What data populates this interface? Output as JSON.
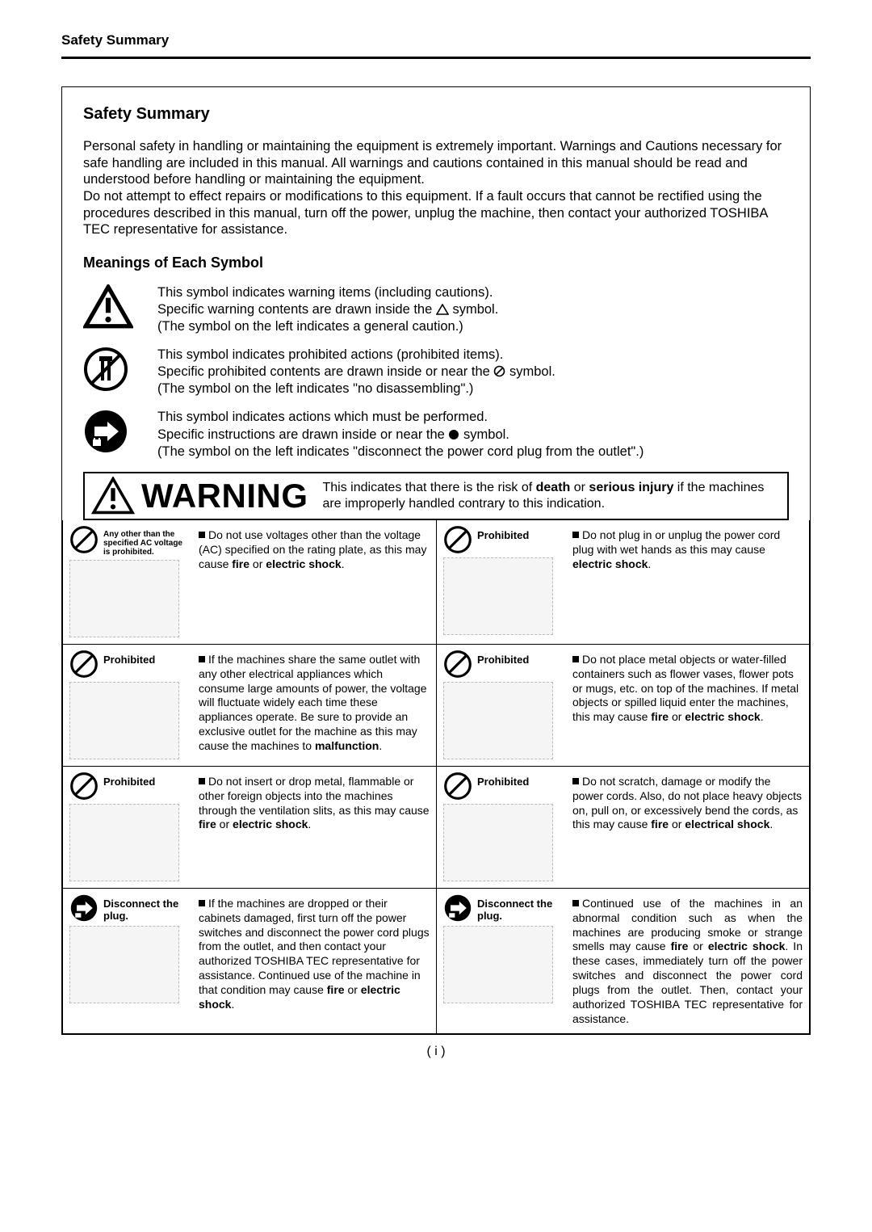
{
  "colors": {
    "text": "#000000",
    "background": "#ffffff",
    "border": "#000000",
    "illus_bg": "#f5f5f5",
    "illus_border": "#bbbbbb"
  },
  "typography": {
    "body_family": "Arial, Helvetica, sans-serif",
    "header_size_pt": 13,
    "title_size_pt": 15,
    "body_size_pt": 12,
    "cell_size_pt": 10.5,
    "warning_label_size_pt": 32
  },
  "header": {
    "title": "Safety Summary"
  },
  "title": "Safety Summary",
  "intro": "Personal safety in handling or maintaining the equipment is extremely important.  Warnings and Cautions necessary for safe handling are included in this manual.  All warnings and cautions contained in this manual should be read and understood before handling or maintaining the equipment.\nDo not attempt to effect repairs or modifications to this equipment.  If a fault occurs that cannot be rectified using the procedures described in this manual, turn off the power, unplug the machine, then contact your authorized TOSHIBA TEC representative for assistance.",
  "subtitle": "Meanings of Each Symbol",
  "symbols": [
    {
      "icon": "warning-triangle",
      "line1": "This symbol indicates warning items (including cautions).",
      "line2a": "Specific warning contents are drawn inside the ",
      "line2b": " symbol.",
      "line3": "(The symbol on the left indicates a general caution.)"
    },
    {
      "icon": "no-disassemble",
      "line1": "This symbol indicates prohibited actions (prohibited items).",
      "line2a": "Specific prohibited contents are drawn inside or near the ",
      "line2b": " symbol.",
      "line3": "(The symbol on the left indicates \"no disassembling\".)"
    },
    {
      "icon": "unplug-action",
      "line1": "This symbol indicates actions which must be performed.",
      "line2a": "Specific instructions are drawn inside or near the ",
      "line2b": " symbol.",
      "line3": "(The symbol on the left indicates \"disconnect the power cord plug from the outlet\".)"
    }
  ],
  "warning_bar": {
    "label": "WARNING",
    "desc_pre": "This indicates that there is the risk of ",
    "bold1": "death",
    "mid": " or ",
    "bold2": "serious injury",
    "desc_post": " if the machines are improperly handled contrary to this indication."
  },
  "cells": [
    [
      {
        "icon": "prohibited",
        "label": "Any other than the specified AC voltage is prohibited.",
        "label_tiny": true,
        "body_pre": "Do not use voltages other than the voltage (AC) specified on the rating plate, as this may cause ",
        "bold1": "fire",
        "mid": " or ",
        "bold2": "electric shock",
        "body_post": "."
      },
      {
        "icon": "prohibited",
        "label": "Prohibited",
        "body_pre": "Do not plug in or unplug the power cord plug with wet hands as this may cause ",
        "bold1": "electric shock",
        "body_post": "."
      }
    ],
    [
      {
        "icon": "prohibited",
        "label": "Prohibited",
        "body_pre": "If the machines share the same outlet with any other electrical appliances which consume large amounts of power, the voltage will fluctuate widely each time these appliances operate.  Be sure to provide an exclusive outlet for the machine as this may cause the machines to ",
        "bold1": "malfunction",
        "body_post": "."
      },
      {
        "icon": "prohibited",
        "label": "Prohibited",
        "body_pre": "Do not place metal objects or water-filled containers such as flower vases, flower pots or mugs, etc. on top of the machines.  If metal objects or spilled liquid enter the machines, this may cause ",
        "bold1": "fire",
        "mid": " or ",
        "bold2": "electric shock",
        "body_post": "."
      }
    ],
    [
      {
        "icon": "prohibited",
        "label": "Prohibited",
        "body_pre": "Do not insert or drop metal, flammable or other foreign objects into the machines through the ventilation slits, as this may cause ",
        "bold1": "fire",
        "mid": " or ",
        "bold2": "electric shock",
        "body_post": "."
      },
      {
        "icon": "prohibited",
        "label": "Prohibited",
        "body_pre": "Do not scratch, damage or modify the power cords.  Also, do not place heavy objects on, pull on, or excessively bend the cords, as this may cause ",
        "bold1": "fire",
        "mid": " or ",
        "bold2": "electrical shock",
        "body_post": "."
      }
    ],
    [
      {
        "icon": "disconnect",
        "label": "Disconnect the plug.",
        "body_pre": "If the machines are dropped or their cabinets damaged, first turn off the power switches and disconnect the power cord plugs from the outlet, and then contact your authorized TOSHIBA TEC representative for assistance.  Continued use of the machine in that condition may cause ",
        "bold1": "fire",
        "mid": " or ",
        "bold2": "electric shock",
        "body_post": "."
      },
      {
        "icon": "disconnect",
        "label": "Disconnect the plug.",
        "justify": true,
        "body_pre": "Continued use of the machines in an abnormal condition such as when the machines are producing smoke or strange smells may cause ",
        "bold1": "fire",
        "mid": " or ",
        "bold2": "electric shock",
        "body_post": ".  In these cases, immediately turn off the power switches and disconnect the power cord plugs from the outlet.  Then, contact your authorized TOSHIBA TEC representative for assistance."
      }
    ]
  ],
  "page_number": "( i )"
}
